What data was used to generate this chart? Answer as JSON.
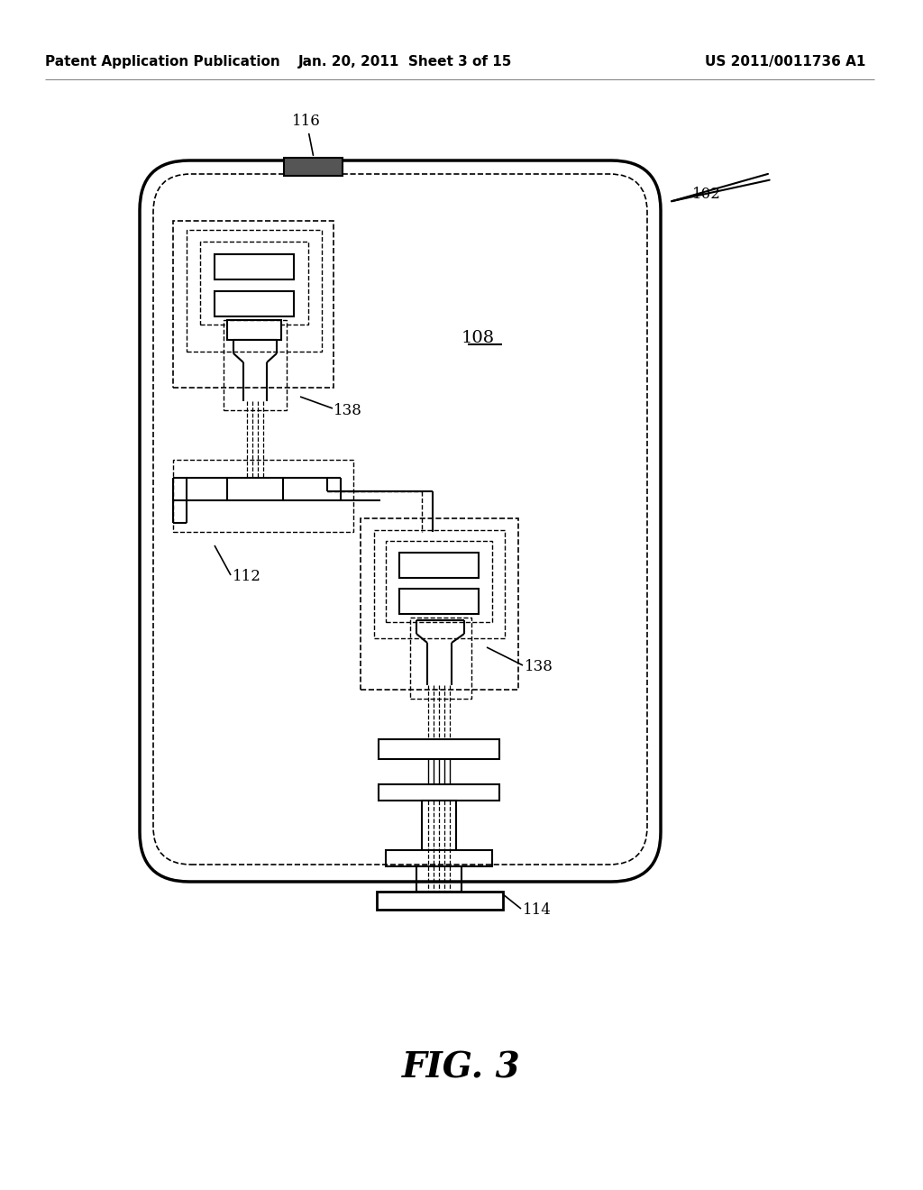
{
  "title_left": "Patent Application Publication",
  "title_center": "Jan. 20, 2011  Sheet 3 of 15",
  "title_right": "US 2011/0011736 A1",
  "fig_label": "FIG. 3",
  "bg_color": "#ffffff",
  "line_color": "#000000"
}
